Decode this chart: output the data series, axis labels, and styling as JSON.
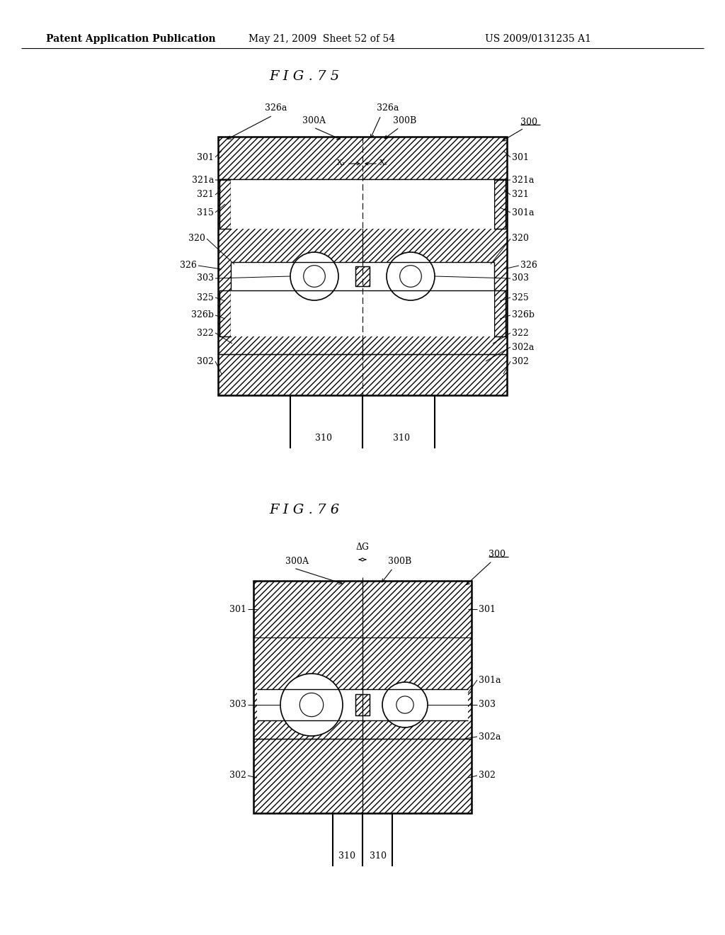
{
  "bg_color": "#ffffff",
  "header_text": "Patent Application Publication",
  "header_date": "May 21, 2009  Sheet 52 of 54",
  "header_patent": "US 2009/0131235 A1",
  "fig75_title": "F I G . 7 5",
  "fig76_title": "F I G . 7 6"
}
